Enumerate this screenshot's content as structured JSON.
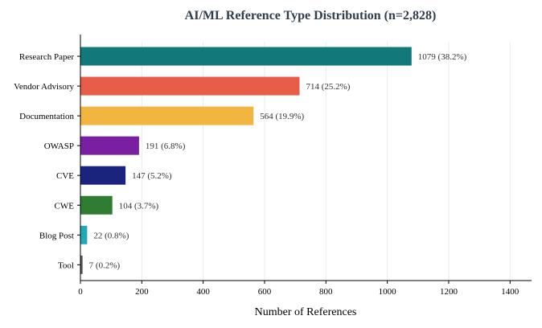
{
  "chart_data": {
    "type": "bar",
    "orientation": "horizontal",
    "title": "AI/ML Reference Type Distribution (n=2,828)",
    "xlabel": "Number of References",
    "ylabel": "",
    "xlim": [
      0,
      1470
    ],
    "xticks": [
      0,
      200,
      400,
      600,
      800,
      1000,
      1200,
      1400
    ],
    "grid": "vertical",
    "categories": [
      "Research Paper",
      "Vendor Advisory",
      "Documentation",
      "OWASP",
      "CVE",
      "CWE",
      "Blog Post",
      "Tool"
    ],
    "values": [
      1079,
      714,
      564,
      191,
      147,
      104,
      22,
      7
    ],
    "labels": [
      "1079 (38.2%)",
      "714 (25.2%)",
      "564 (19.9%)",
      "191 (6.8%)",
      "147 (5.2%)",
      "104 (3.7%)",
      "22 (0.8%)",
      "7 (0.2%)"
    ],
    "colors": [
      "#13787a",
      "#e85d4a",
      "#f2b53f",
      "#7b1fa2",
      "#1a237e",
      "#2e7d32",
      "#21a9b4",
      "#595959"
    ]
  }
}
